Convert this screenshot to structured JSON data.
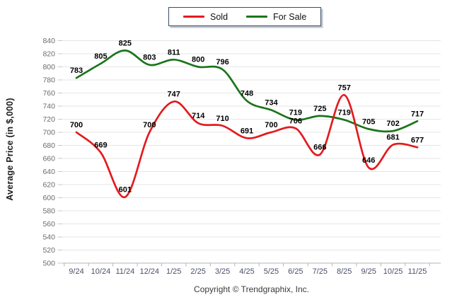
{
  "chart_data": {
    "type": "line",
    "title": "",
    "xlabel": "",
    "ylabel": "Average Price (in $,000)",
    "ylim": [
      500,
      840
    ],
    "ytick_step": 20,
    "grid": true,
    "legend_position": "top-center",
    "categories": [
      "9/24",
      "10/24",
      "11/24",
      "12/24",
      "1/25",
      "2/25",
      "3/25",
      "4/25",
      "5/25",
      "6/25",
      "7/25",
      "8/25",
      "9/25",
      "10/25",
      "11/25"
    ],
    "series": [
      {
        "name": "Sold",
        "color": "#e31b1e",
        "values": [
          700,
          669,
          601,
          700,
          747,
          714,
          710,
          691,
          700,
          706,
          666,
          757,
          646,
          681,
          677
        ]
      },
      {
        "name": "For Sale",
        "color": "#1b741b",
        "values": [
          783,
          805,
          825,
          803,
          811,
          800,
          796,
          748,
          734,
          719,
          725,
          719,
          705,
          702,
          717
        ]
      }
    ]
  },
  "palette": {
    "grid": "#e6e6e6",
    "axis_line": "#b5b5b5",
    "tick": "#c9c9c9",
    "y_tick_label": "#6b6b6b",
    "x_tick_label": "#49506a",
    "data_label": "#000000"
  },
  "footer": {
    "copyright": "Copyright © Trendgraphix, Inc."
  }
}
